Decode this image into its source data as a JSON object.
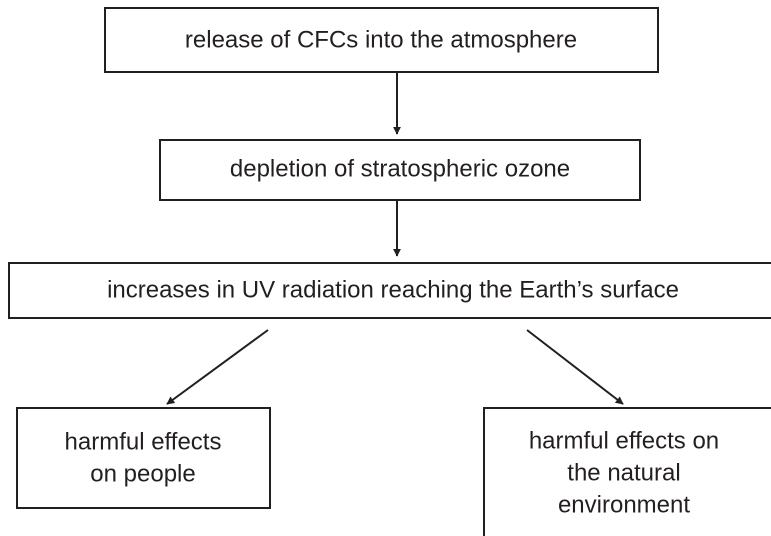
{
  "nodes": [
    {
      "lines": [
        "release of CFCs into the atmosphere"
      ]
    },
    {
      "lines": [
        "depletion of stratospheric ozone"
      ]
    },
    {
      "lines": [
        "increases in UV radiation reaching the Earth’s surface"
      ]
    },
    {
      "lines": [
        "harmful effects",
        "on people"
      ]
    },
    {
      "lines": [
        "harmful effects on",
        "the natural",
        "environment"
      ]
    }
  ]
}
